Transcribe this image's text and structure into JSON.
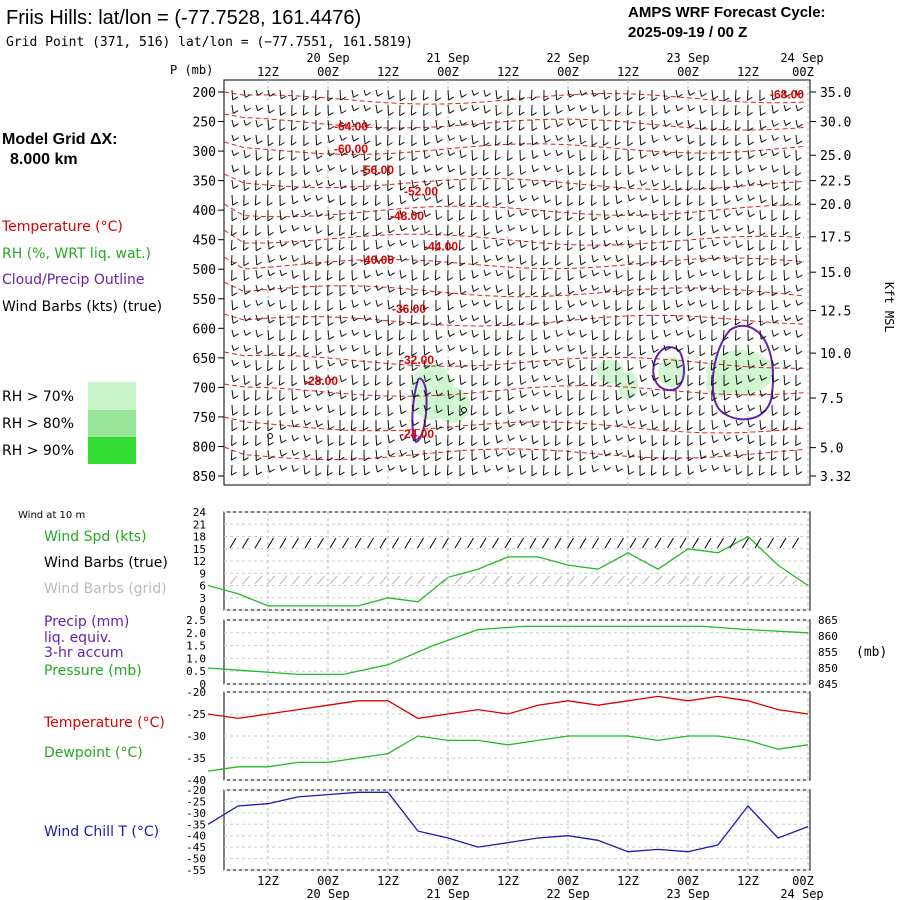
{
  "header": {
    "title": "Friis Hills:  lat/lon = (-77.7528, 161.4476)",
    "grid_point": "Grid Point (371, 516) lat/lon = (−77.7551, 161.5819)",
    "cycle_label": "AMPS WRF Forecast Cycle:",
    "cycle_value": "2025-09-19 / 00  Z"
  },
  "model": {
    "label": "Model Grid ΔX:",
    "value": "8.000 km"
  },
  "time_axis": {
    "hours": [
      "12Z",
      "00Z",
      "12Z",
      "00Z",
      "12Z",
      "00Z",
      "12Z",
      "00Z",
      "12Z",
      "00Z"
    ],
    "dates": [
      {
        "label": "20 Sep",
        "slot": 1
      },
      {
        "label": "21 Sep",
        "slot": 3
      },
      {
        "label": "22 Sep",
        "slot": 5
      },
      {
        "label": "23 Sep",
        "slot": 7
      },
      {
        "label": "24 Sep",
        "slot": 9
      }
    ]
  },
  "sounding": {
    "p_label": "P (mb)",
    "pressure_levels": [
      200,
      250,
      300,
      350,
      400,
      450,
      500,
      550,
      600,
      650,
      700,
      750,
      800,
      850
    ],
    "height_ticks": [
      {
        "label": "35.0",
        "p": 200
      },
      {
        "label": "30.0",
        "p": 250
      },
      {
        "label": "25.0",
        "p": 307
      },
      {
        "label": "22.5",
        "p": 350
      },
      {
        "label": "20.0",
        "p": 390
      },
      {
        "label": "17.5",
        "p": 445
      },
      {
        "label": "15.0",
        "p": 505
      },
      {
        "label": "12.5",
        "p": 570
      },
      {
        "label": "10.0",
        "p": 642
      },
      {
        "label": "7.5",
        "p": 718
      },
      {
        "label": "5.0",
        "p": 802
      },
      {
        "label": "3.32",
        "p": 850
      }
    ],
    "height_unit": "Kft MSL",
    "temp_labels": [
      {
        "text": "-68.00",
        "t": 3.4,
        "p": 211
      },
      {
        "text": "-64.00",
        "t": 0.6,
        "p": 265
      },
      {
        "text": "-60.00",
        "t": 0.6,
        "p": 303
      },
      {
        "text": "-56.00",
        "t": 0.73,
        "p": 339
      },
      {
        "text": "-52.00",
        "t": 0.95,
        "p": 375
      },
      {
        "text": "-48.00",
        "t": 0.88,
        "p": 417
      },
      {
        "text": "-44.00",
        "t": 1.05,
        "p": 468
      },
      {
        "text": "-40.00",
        "t": 0.73,
        "p": 491
      },
      {
        "text": "-36.00",
        "t": 0.89,
        "p": 574
      },
      {
        "text": "-32.00",
        "t": 0.93,
        "p": 660
      },
      {
        "text": "-28.00",
        "t": 0.45,
        "p": 696
      },
      {
        "text": "-24.00",
        "t": 0.93,
        "p": 786
      }
    ]
  },
  "legend": {
    "temperature": "Temperature (°C)",
    "rh": "RH (%, WRT liq. wat.)",
    "cloud": "Cloud/Precip Outline",
    "wind": "Wind Barbs (kts) (true)",
    "rh70": "RH > 70%",
    "rh80": "RH > 80%",
    "rh90": "RH > 90%",
    "colors": {
      "temperature": "#dd0000",
      "rh": "#22aa22",
      "cloud": "#6622aa",
      "rh70": "#ccf5cc",
      "rh80": "#99e599",
      "rh90": "#33dd33"
    }
  },
  "panels": {
    "wind": {
      "title": "Wind at 10 m",
      "spd_label": "Wind Spd (kts)",
      "barb_true_label": "Wind Barbs (true)",
      "barb_grid_label": "Wind Barbs (grid)",
      "ticks": [
        "24",
        "21",
        "18",
        "15",
        "12",
        "9",
        "6",
        "3",
        "0"
      ]
    },
    "precip": {
      "l1": "Precip (mm)",
      "l2": "liq. equiv.",
      "l3": "3-hr accum",
      "l4": "Pressure (mb)",
      "left_ticks": [
        "2.5",
        "2.0",
        "1.5",
        "1.0",
        "0.5",
        "0"
      ],
      "right_ticks": [
        "865",
        "860",
        "855",
        "850",
        "845"
      ],
      "unit": "(mb)"
    },
    "temp": {
      "l1": "Temperature (°C)",
      "l2": "Dewpoint (°C)",
      "ticks": [
        "-20",
        "-25",
        "-30",
        "-35",
        "-40"
      ]
    },
    "chill": {
      "l1": "Wind Chill T (°C)",
      "ticks": [
        "-20",
        "-25",
        "-30",
        "-35",
        "-40",
        "-45",
        "-50",
        "-55"
      ]
    }
  },
  "chart_data": [
    {
      "type": "line",
      "title": "Wind at 10 m",
      "x_hours": [
        0,
        6,
        12,
        18,
        24,
        30,
        36,
        42,
        48,
        54,
        60,
        66,
        72,
        78,
        84,
        90,
        96,
        102,
        108,
        114,
        120
      ],
      "series": [
        {
          "name": "Wind Spd (kts)",
          "values": [
            6,
            4,
            1,
            1,
            1,
            1,
            3,
            2,
            8,
            10,
            13,
            13,
            11,
            10,
            14,
            10,
            15,
            14,
            18,
            11,
            6
          ]
        }
      ],
      "ylim": [
        0,
        24
      ]
    },
    {
      "type": "line",
      "series": [
        {
          "name": "Pressure (mb)",
          "values": [
            850,
            849,
            848,
            848,
            851,
            857,
            862,
            863,
            863,
            863,
            863,
            863,
            862,
            861
          ]
        }
      ],
      "x_hours": [
        0,
        9,
        18,
        27,
        36,
        45,
        54,
        63,
        72,
        81,
        90,
        99,
        108,
        120
      ],
      "ylim_precip": [
        0,
        2.5
      ],
      "ylim_pressure": [
        845,
        865
      ]
    },
    {
      "type": "line",
      "x_hours": [
        0,
        6,
        12,
        18,
        24,
        30,
        36,
        42,
        48,
        54,
        60,
        66,
        72,
        78,
        84,
        90,
        96,
        102,
        108,
        114,
        120
      ],
      "series": [
        {
          "name": "Temperature (°C)",
          "values": [
            -25,
            -26,
            -25,
            -24,
            -23,
            -22,
            -22,
            -26,
            -25,
            -24,
            -25,
            -23,
            -22,
            -23,
            -22,
            -21,
            -22,
            -21,
            -22,
            -24,
            -25
          ]
        },
        {
          "name": "Dewpoint (°C)",
          "values": [
            -38,
            -37,
            -37,
            -36,
            -36,
            -35,
            -34,
            -30,
            -31,
            -31,
            -32,
            -31,
            -30,
            -30,
            -30,
            -31,
            -30,
            -30,
            -31,
            -33,
            -32
          ]
        }
      ],
      "ylim": [
        -40,
        -20
      ]
    },
    {
      "type": "line",
      "x_hours": [
        0,
        6,
        12,
        18,
        24,
        30,
        36,
        42,
        48,
        54,
        60,
        66,
        72,
        78,
        84,
        90,
        96,
        102,
        108,
        114,
        120
      ],
      "series": [
        {
          "name": "Wind Chill T (°C)",
          "values": [
            -35,
            -27,
            -26,
            -23,
            -22,
            -21,
            -21,
            -38,
            -41,
            -45,
            -43,
            -41,
            -40,
            -42,
            -47,
            -46,
            -47,
            -44,
            -27,
            -41,
            -36
          ]
        }
      ],
      "ylim": [
        -55,
        -20
      ]
    }
  ]
}
